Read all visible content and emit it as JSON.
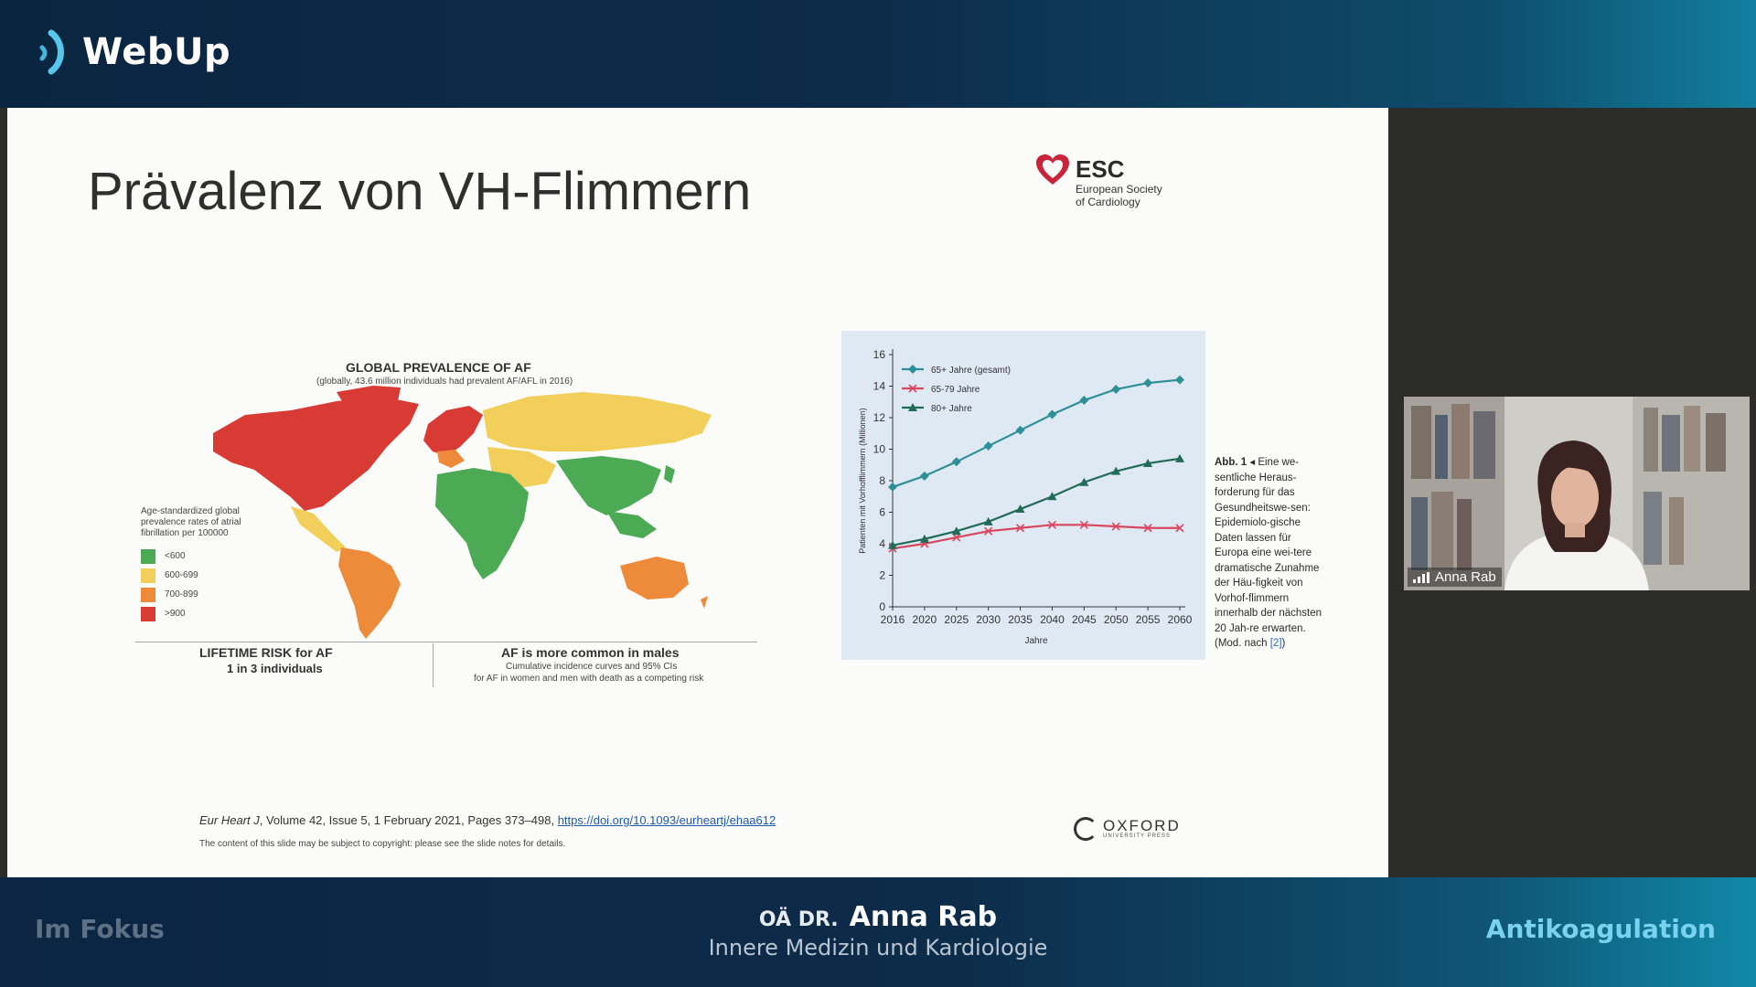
{
  "app": {
    "name": "WebUp"
  },
  "slide": {
    "title": "Prävalenz von VH-Flimmern",
    "esc": {
      "abbr": "ESC",
      "line1": "European Society",
      "line2": "of Cardiology"
    },
    "map": {
      "title": "GLOBAL PREVALENCE OF AF",
      "subtitle": "(globally, 43.6 million individuals had prevalent AF/AFL in 2016)",
      "legend_heading": "Age-standardized global prevalence rates of atrial fibrillation per 100000",
      "legend": [
        {
          "label": "<600",
          "color": "#4caa55"
        },
        {
          "label": "600-699",
          "color": "#f2cf5b"
        },
        {
          "label": "700-899",
          "color": "#ee8b3a"
        },
        {
          "label": ">900",
          "color": "#d83b34"
        }
      ],
      "lifetime_line1": "LIFETIME RISK for AF",
      "lifetime_line2": "1 in 3 individuals",
      "males_line1": "AF is more common in males",
      "males_line2": "Cumulative incidence curves and 95% CIs",
      "males_line3": "for AF in women and men with death as a competing risk"
    },
    "caption": {
      "label": "Abb. 1",
      "text": "Eine we-sentliche Heraus-forderung für das Gesundheitswe-sen: Epidemiolo-gische Daten lassen für Europa eine wei-tere dramatische Zunahme der Häu-figkeit von Vorhof-flimmern innerhalb der nächsten 20 Jah-re erwarten. (Mod. nach",
      "ref": "[2]",
      "close": ")"
    },
    "citation": {
      "journal": "Eur Heart J",
      "details": ", Volume 42, Issue 5, 1 February 2021, Pages 373–498,",
      "link": "https://doi.org/10.1093/eurheartj/ehaa612"
    },
    "copyright": "The content of this slide may be subject to copyright: please see the slide notes for details.",
    "oxford": {
      "name": "OXFORD",
      "sub": "UNIVERSITY PRESS"
    }
  },
  "chart_data": {
    "type": "line",
    "title": "",
    "xlabel": "Jahre",
    "ylabel": "Patienten mit Vorhofflimmern (Millionen)",
    "x": [
      2016,
      2020,
      2025,
      2030,
      2035,
      2040,
      2045,
      2050,
      2055,
      2060
    ],
    "ylim": [
      0,
      16
    ],
    "yticks": [
      0,
      2,
      4,
      6,
      8,
      10,
      12,
      14,
      16
    ],
    "legend_position": "top-left",
    "series": [
      {
        "name": "65+ Jahre (gesamt)",
        "color": "#2f8f96",
        "marker": "diamond",
        "values": [
          7.6,
          8.3,
          9.2,
          10.2,
          11.2,
          12.2,
          13.1,
          13.8,
          14.2,
          14.4
        ]
      },
      {
        "name": "65-79 Jahre",
        "color": "#d9465f",
        "marker": "x",
        "values": [
          3.7,
          4.0,
          4.4,
          4.8,
          5.0,
          5.2,
          5.2,
          5.1,
          5.0,
          5.0
        ]
      },
      {
        "name": "80+ Jahre",
        "color": "#226b57",
        "marker": "triangle",
        "values": [
          3.9,
          4.3,
          4.8,
          5.4,
          6.2,
          7.0,
          7.9,
          8.6,
          9.1,
          9.4
        ]
      }
    ]
  },
  "video": {
    "participant": "Anna Rab"
  },
  "footer": {
    "left": "Im Fokus",
    "speaker_prefix": "OÄ DR.",
    "speaker_name": "Anna Rab",
    "speaker_role": "Innere Medizin und Kardiologie",
    "topic": "Antikoagulation"
  }
}
